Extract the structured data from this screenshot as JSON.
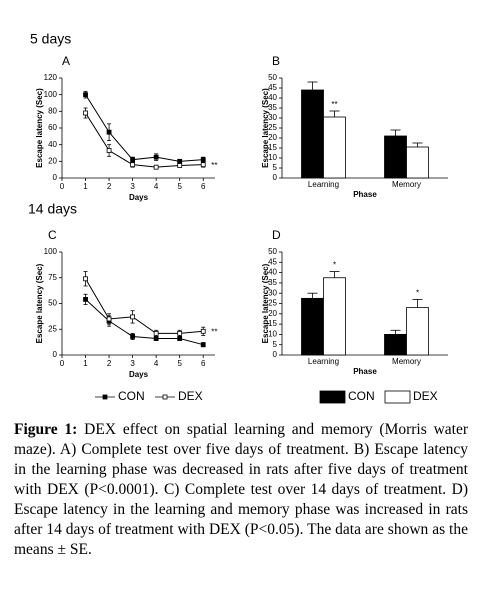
{
  "labels": [
    "5 days",
    "14 days"
  ],
  "chart_data": [
    {
      "type": "line",
      "panel": "A",
      "xlabel": "Days",
      "ylabel": "Escape latency (Sec)",
      "x": [
        1,
        2,
        3,
        4,
        5,
        6
      ],
      "xlim": [
        0,
        6.5
      ],
      "xticks": [
        0,
        1,
        2,
        3,
        4,
        5,
        6
      ],
      "ylim": [
        0,
        120
      ],
      "yticks": [
        0,
        20,
        40,
        60,
        80,
        100,
        120
      ],
      "annotation": "**",
      "series": [
        {
          "name": "CON",
          "color": "#000000",
          "fill": "#000000",
          "values": [
            100,
            55,
            22,
            25,
            20,
            22
          ],
          "errors": [
            4,
            10,
            3,
            4,
            2,
            3
          ]
        },
        {
          "name": "DEX",
          "color": "#000000",
          "fill": "#ffffff",
          "values": [
            78,
            33,
            16,
            13,
            15,
            16
          ],
          "errors": [
            6,
            7,
            3,
            2,
            2,
            3
          ]
        }
      ]
    },
    {
      "type": "bar",
      "panel": "B",
      "xlabel": "Phase",
      "ylabel": "Escape latency (Sec)",
      "categories": [
        "Learning",
        "Memory"
      ],
      "ylim": [
        0,
        50
      ],
      "yticks": [
        0,
        5,
        10,
        15,
        20,
        25,
        30,
        35,
        40,
        45,
        50
      ],
      "annotations": [
        "**",
        null
      ],
      "series": [
        {
          "name": "CON",
          "color": "#000000",
          "fill": "#000000",
          "values": [
            44,
            21
          ],
          "errors": [
            4,
            3
          ]
        },
        {
          "name": "DEX",
          "color": "#000000",
          "fill": "#ffffff",
          "values": [
            30.5,
            15.5
          ],
          "errors": [
            3,
            2
          ]
        }
      ]
    },
    {
      "type": "line",
      "panel": "C",
      "xlabel": "Days",
      "ylabel": "Escape latency (Sec)",
      "x": [
        1,
        2,
        3,
        4,
        5,
        6
      ],
      "xlim": [
        0,
        6.5
      ],
      "xticks": [
        0,
        1,
        2,
        3,
        4,
        5,
        6
      ],
      "ylim": [
        0,
        100
      ],
      "yticks": [
        0,
        25,
        50,
        75,
        100
      ],
      "annotation": "**",
      "series": [
        {
          "name": "CON",
          "color": "#000000",
          "fill": "#000000",
          "values": [
            54,
            33,
            18,
            16,
            16,
            10
          ],
          "errors": [
            5,
            5,
            3,
            2,
            2,
            2
          ]
        },
        {
          "name": "DEX",
          "color": "#000000",
          "fill": "#ffffff",
          "values": [
            74,
            35,
            37,
            21,
            21,
            23
          ],
          "errors": [
            7,
            5,
            6,
            3,
            3,
            4
          ]
        }
      ]
    },
    {
      "type": "bar",
      "panel": "D",
      "xlabel": "Phase",
      "ylabel": "Escape latency (Sec)",
      "categories": [
        "Learning",
        "Memory"
      ],
      "ylim": [
        0,
        50
      ],
      "yticks": [
        0,
        5,
        10,
        15,
        20,
        25,
        30,
        35,
        40,
        45,
        50
      ],
      "annotations": [
        "*",
        "*"
      ],
      "series": [
        {
          "name": "CON",
          "color": "#000000",
          "fill": "#000000",
          "values": [
            27.5,
            10
          ],
          "errors": [
            2.5,
            2
          ]
        },
        {
          "name": "DEX",
          "color": "#000000",
          "fill": "#ffffff",
          "values": [
            37.5,
            23
          ],
          "errors": [
            3,
            4
          ]
        }
      ]
    }
  ],
  "caption": {
    "label": "Figure 1:",
    "text": "DEX effect on spatial learning and memory (Morris water maze). A) Complete test over five days of treatment. B) Escape latency in the learning phase was decreased in rats after five days of treatment with DEX (P<0.0001). C) Complete test over 14 days of treatment. D) Escape latency in the learning and memory phase was increased in rats after 14 days of treatment with DEX (P<0.05). The data are shown as the means ± SE."
  }
}
